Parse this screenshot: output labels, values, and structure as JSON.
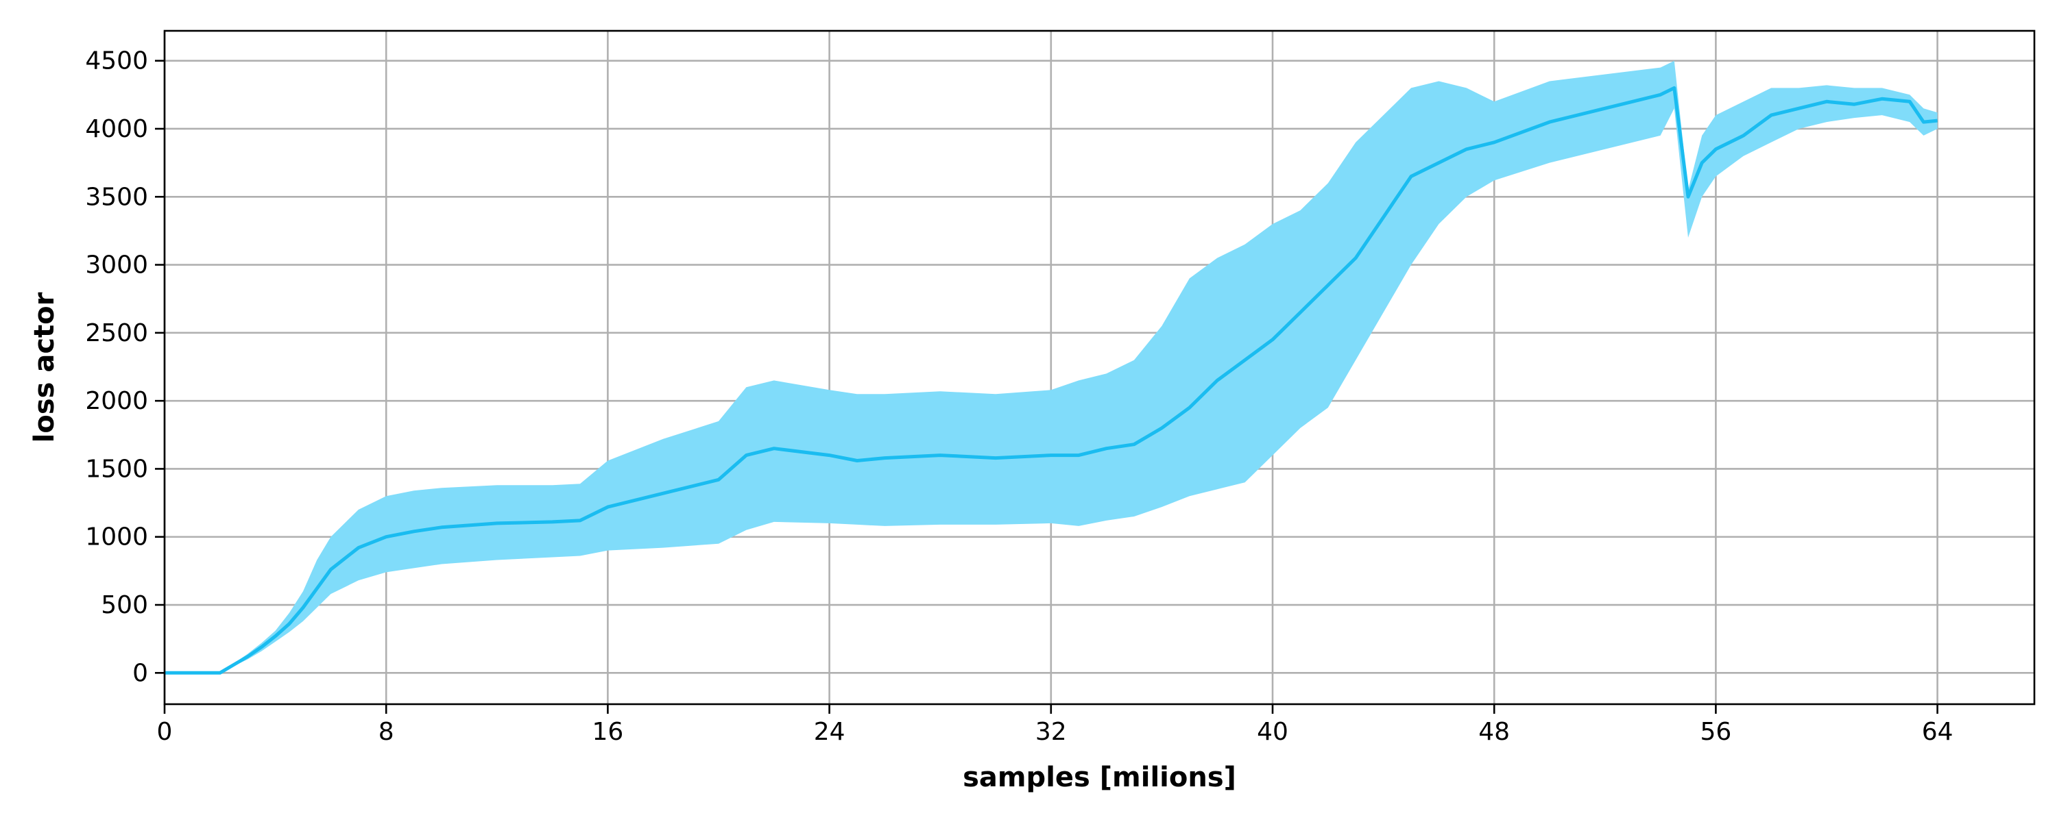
{
  "chart_data": {
    "type": "line",
    "xlabel": "samples [milions]",
    "ylabel": "loss actor",
    "xlim": [
      0,
      67.5
    ],
    "ylim": [
      -230,
      4720
    ],
    "xticks": [
      0,
      8,
      16,
      24,
      32,
      40,
      48,
      56,
      64
    ],
    "yticks": [
      0,
      500,
      1000,
      1500,
      2000,
      2500,
      3000,
      3500,
      4000,
      4500
    ],
    "grid": true,
    "colors": {
      "line": "#1abcf0",
      "band": "#80dcfa"
    },
    "series": [
      {
        "x": [
          0,
          2,
          2.5,
          3,
          3.5,
          4,
          4.5,
          5,
          5.5,
          6,
          7,
          8,
          9,
          10,
          12,
          14,
          15,
          16,
          18,
          20,
          21,
          22,
          24,
          25,
          26,
          28,
          30,
          32,
          33,
          34,
          35,
          36,
          37,
          38,
          39,
          40,
          41,
          42,
          43,
          44,
          45,
          46,
          47,
          48,
          50,
          52,
          54,
          54.5,
          55,
          55.5,
          56,
          57,
          58,
          59,
          60,
          61,
          62,
          63,
          63.5,
          64
        ],
        "mean": [
          0,
          0,
          60,
          120,
          190,
          270,
          360,
          480,
          620,
          760,
          920,
          1000,
          1040,
          1070,
          1100,
          1110,
          1120,
          1220,
          1320,
          1420,
          1600,
          1650,
          1600,
          1560,
          1580,
          1600,
          1580,
          1600,
          1600,
          1650,
          1680,
          1800,
          1950,
          2150,
          2300,
          2450,
          2650,
          2850,
          3050,
          3350,
          3650,
          3750,
          3850,
          3900,
          4050,
          4150,
          4250,
          4300,
          3500,
          3750,
          3850,
          3950,
          4100,
          4150,
          4200,
          4180,
          4220,
          4200,
          4050,
          4060
        ],
        "lower": [
          0,
          0,
          50,
          100,
          160,
          230,
          300,
          380,
          480,
          580,
          680,
          740,
          770,
          800,
          830,
          850,
          860,
          900,
          920,
          950,
          1050,
          1110,
          1100,
          1090,
          1080,
          1090,
          1090,
          1100,
          1080,
          1120,
          1150,
          1220,
          1300,
          1350,
          1400,
          1600,
          1800,
          1950,
          2300,
          2650,
          3000,
          3300,
          3500,
          3620,
          3750,
          3850,
          3950,
          4150,
          3200,
          3500,
          3650,
          3800,
          3900,
          4000,
          4050,
          4080,
          4100,
          4050,
          3950,
          4000
        ],
        "upper": [
          0,
          0,
          70,
          140,
          220,
          310,
          440,
          600,
          830,
          1000,
          1200,
          1300,
          1340,
          1360,
          1380,
          1380,
          1390,
          1560,
          1720,
          1850,
          2100,
          2150,
          2080,
          2050,
          2050,
          2070,
          2050,
          2080,
          2150,
          2200,
          2300,
          2550,
          2900,
          3050,
          3150,
          3300,
          3400,
          3600,
          3900,
          4100,
          4300,
          4350,
          4300,
          4200,
          4350,
          4400,
          4450,
          4500,
          3550,
          3950,
          4100,
          4200,
          4300,
          4300,
          4320,
          4300,
          4300,
          4250,
          4150,
          4120
        ]
      }
    ]
  }
}
